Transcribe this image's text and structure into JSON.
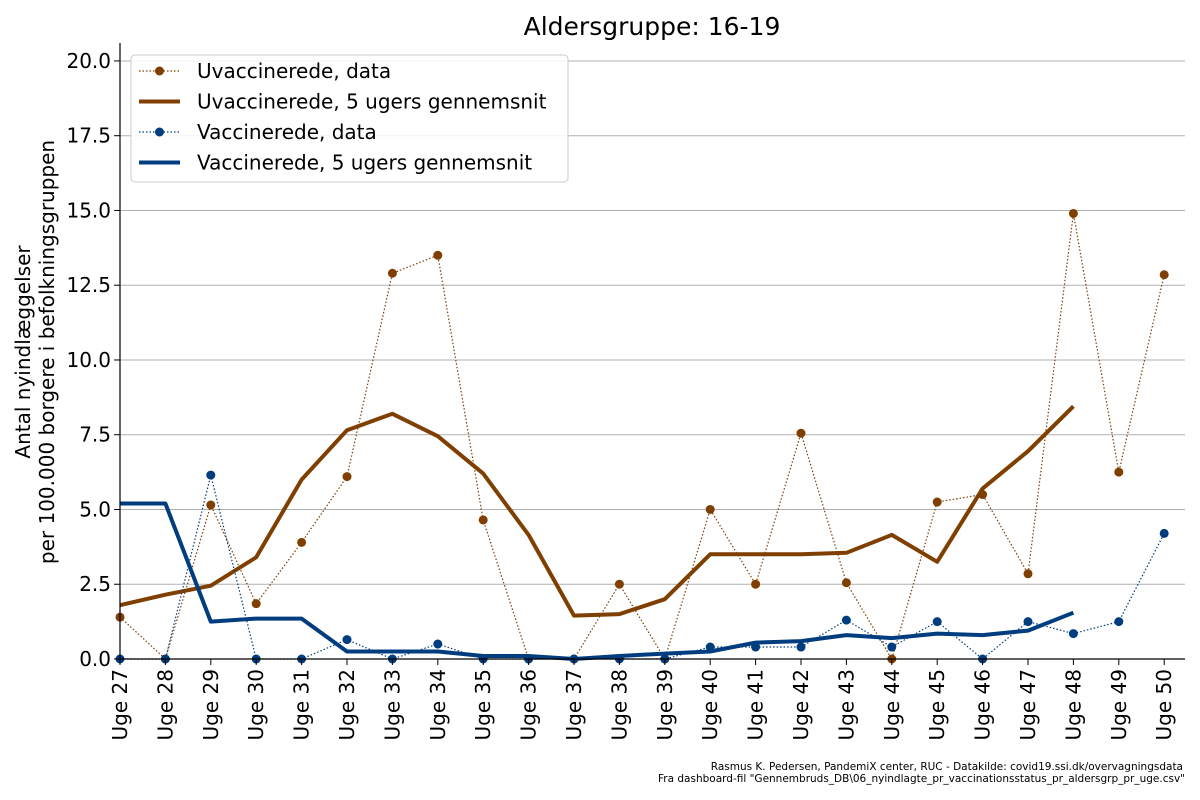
{
  "chart_data": {
    "type": "line",
    "title": "Aldersgruppe: 16-19",
    "ylabel_lines": [
      "Antal nyindlæggelser",
      "per 100.000 borgere i befolkningsgruppen"
    ],
    "xlabel": "",
    "categories": [
      "Uge 27",
      "Uge 28",
      "Uge 29",
      "Uge 30",
      "Uge 31",
      "Uge 32",
      "Uge 33",
      "Uge 34",
      "Uge 35",
      "Uge 36",
      "Uge 37",
      "Uge 38",
      "Uge 39",
      "Uge 40",
      "Uge 41",
      "Uge 42",
      "Uge 43",
      "Uge 44",
      "Uge 45",
      "Uge 46",
      "Uge 47",
      "Uge 48",
      "Uge 49",
      "Uge 50"
    ],
    "yticks": [
      "0.0",
      "2.5",
      "5.0",
      "7.5",
      "10.0",
      "12.5",
      "15.0",
      "17.5",
      "20.0"
    ],
    "ylim": [
      0,
      20.6
    ],
    "grid": "horizontal",
    "legend_position": "top-left",
    "series": [
      {
        "name": "Uvaccinerede, data",
        "style": "dotted-markers",
        "color": "#7f3f00",
        "values": [
          1.4,
          0.0,
          5.15,
          1.85,
          3.9,
          6.1,
          12.9,
          13.5,
          4.65,
          0.0,
          0.0,
          2.5,
          0.0,
          5.0,
          2.5,
          7.55,
          2.55,
          0.0,
          5.25,
          5.5,
          2.85,
          14.9,
          6.25,
          12.85
        ]
      },
      {
        "name": "Uvaccinerede, 5 ugers gennemsnit",
        "style": "solid",
        "color": "#7f3f00",
        "values": [
          1.8,
          2.15,
          2.45,
          3.4,
          6.0,
          7.65,
          8.2,
          7.45,
          6.2,
          4.15,
          1.45,
          1.5,
          2.0,
          3.5,
          3.5,
          3.5,
          3.55,
          4.15,
          3.25,
          5.7,
          6.95,
          8.45,
          null,
          null
        ]
      },
      {
        "name": "Vaccinerede, data",
        "style": "dotted-markers",
        "color": "#003d7f",
        "values": [
          0.0,
          0.0,
          6.15,
          0.0,
          0.0,
          0.65,
          0.0,
          0.5,
          0.0,
          0.0,
          0.0,
          0.0,
          0.0,
          0.4,
          0.4,
          0.4,
          1.3,
          0.4,
          1.25,
          0.0,
          1.25,
          0.85,
          1.25,
          4.2
        ]
      },
      {
        "name": "Vaccinerede, 5 ugers gennemsnit",
        "style": "solid",
        "color": "#003d7f",
        "values": [
          5.2,
          5.2,
          1.25,
          1.35,
          1.35,
          0.25,
          0.25,
          0.25,
          0.1,
          0.1,
          0.0,
          0.1,
          0.18,
          0.25,
          0.55,
          0.6,
          0.8,
          0.7,
          0.85,
          0.8,
          0.95,
          1.55,
          null,
          null
        ]
      }
    ]
  },
  "credits": [
    "Rasmus K. Pedersen, PandemiX center, RUC - Datakilde: covid19.ssi.dk/overvagningsdata",
    "Fra dashboard-fil \"Gennembruds_DB\\06_nyindlagte_pr_vaccinationsstatus_pr_aldersgrp_pr_uge.csv\""
  ]
}
